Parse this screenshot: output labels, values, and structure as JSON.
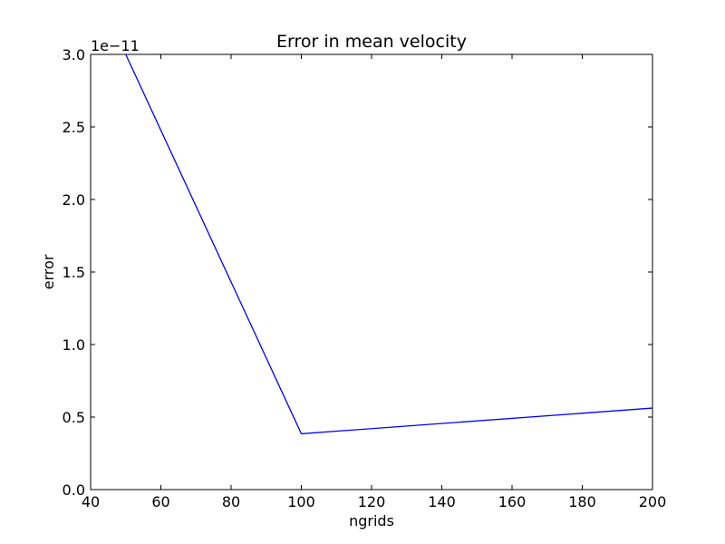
{
  "chart_data": {
    "type": "line",
    "title": "Error in mean velocity",
    "xlabel": "ngrids",
    "ylabel": "error",
    "y_multiplier_label": "1e−11",
    "xlim": [
      40,
      200
    ],
    "ylim": [
      0.0,
      3.0
    ],
    "x_ticks": [
      40,
      60,
      80,
      100,
      120,
      140,
      160,
      180,
      200
    ],
    "y_ticks": [
      0.0,
      0.5,
      1.0,
      1.5,
      2.0,
      2.5,
      3.0
    ],
    "x_tick_labels": [
      "40",
      "60",
      "80",
      "100",
      "120",
      "140",
      "160",
      "180",
      "200"
    ],
    "y_tick_labels": [
      "0.0",
      "0.5",
      "1.0",
      "1.5",
      "2.0",
      "2.5",
      "3.0"
    ],
    "grid": false,
    "series": [
      {
        "color": "#0000ff",
        "x": [
          50,
          100,
          200
        ],
        "y": [
          3.0,
          0.385,
          0.562
        ]
      }
    ]
  }
}
